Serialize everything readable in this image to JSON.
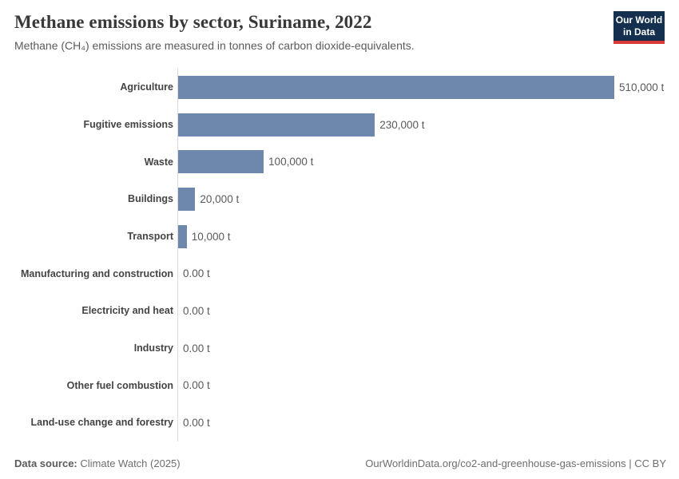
{
  "header": {
    "title": "Methane emissions by sector, Suriname, 2022",
    "subtitle": "Methane (CH₄) emissions are measured in tonnes of carbon dioxide-equivalents.",
    "logo_line1": "Our World",
    "logo_line2": "in Data"
  },
  "chart_data": {
    "type": "bar",
    "orientation": "horizontal",
    "title": "Methane emissions by sector, Suriname, 2022",
    "xlabel": "",
    "ylabel": "",
    "xlim": [
      0,
      510000
    ],
    "grid": false,
    "legend": false,
    "categories": [
      "Agriculture",
      "Fugitive emissions",
      "Waste",
      "Buildings",
      "Transport",
      "Manufacturing and construction",
      "Electricity and heat",
      "Industry",
      "Other fuel combustion",
      "Land-use change and forestry"
    ],
    "values": [
      510000,
      230000,
      100000,
      20000,
      10000,
      0,
      0,
      0,
      0,
      0
    ],
    "value_labels": [
      "510,000 t",
      "230,000 t",
      "100,000 t",
      "20,000 t",
      "10,000 t",
      "0.00 t",
      "0.00 t",
      "0.00 t",
      "0.00 t",
      "0.00 t"
    ],
    "unit": "t"
  },
  "footer": {
    "data_source_label": "Data source:",
    "data_source_value": "Climate Watch (2025)",
    "attribution": "OurWorldinData.org/co2-and-greenhouse-gas-emissions | CC BY"
  },
  "colors": {
    "bar": "#6d87ad",
    "axis_line": "#dcdcdc",
    "logo_background": "#15304f",
    "logo_red": "#d93a3a",
    "title_text": "#383838",
    "subtitle_text": "#5b5b5b",
    "category_text": "#444444",
    "value_text": "#5a5a5a",
    "footer_text": "#6e6e6e"
  }
}
